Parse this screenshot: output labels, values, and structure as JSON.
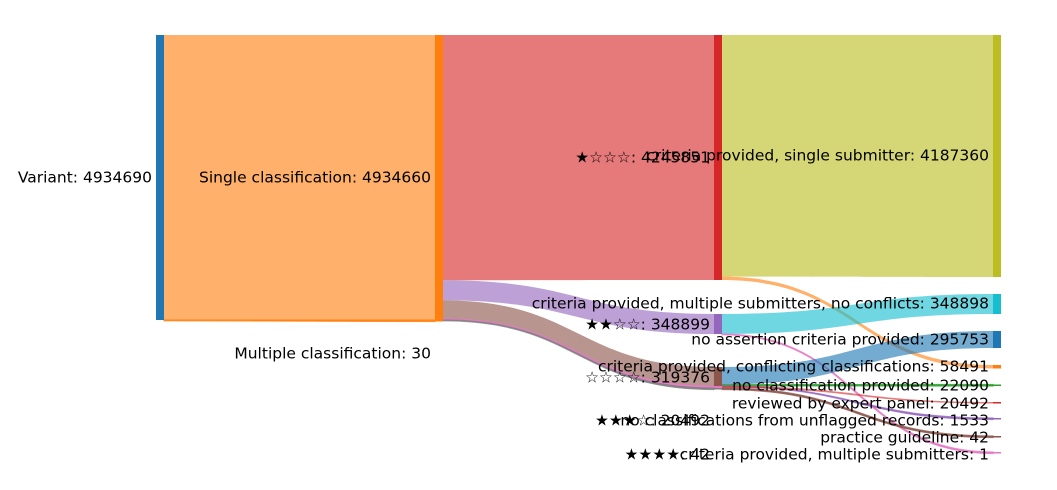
{
  "chart_data": {
    "type": "sankey",
    "title": "",
    "columns": [
      [
        {
          "id": "variant",
          "label": "Variant: 4934690",
          "value": 4934690,
          "color": "#1f77b4"
        }
      ],
      [
        {
          "id": "single",
          "label": "Single classification: 4934660",
          "value": 4934660,
          "color": "#ff7f0e"
        },
        {
          "id": "multiple",
          "label": "Multiple classification: 30",
          "value": 30,
          "color": "#ff7f0e"
        }
      ],
      [
        {
          "id": "star1",
          "label": "★☆☆☆: 4245851",
          "value": 4245851,
          "color": "#d62728"
        },
        {
          "id": "star2",
          "label": "★★☆☆: 348899",
          "value": 348899,
          "color": "#9467bd"
        },
        {
          "id": "star0",
          "label": "☆☆☆☆: 319376",
          "value": 319376,
          "color": "#8c564b"
        },
        {
          "id": "star3",
          "label": "★★★☆: 20492",
          "value": 20492,
          "color": "#e377c2"
        },
        {
          "id": "star4",
          "label": "★★★★: 42",
          "value": 42,
          "color": "#7f7f7f"
        }
      ],
      [
        {
          "id": "cp_single",
          "label": "criteria provided, single submitter: 4187360",
          "value": 4187360,
          "color": "#bcbd22"
        },
        {
          "id": "cp_multi_nc",
          "label": "criteria provided, multiple submitters, no conflicts: 348898",
          "value": 348898,
          "color": "#17becf"
        },
        {
          "id": "no_assert",
          "label": "no assertion criteria provided: 295753",
          "value": 295753,
          "color": "#1f77b4"
        },
        {
          "id": "cp_conflict",
          "label": "criteria provided, conflicting classifications: 58491",
          "value": 58491,
          "color": "#ff7f0e"
        },
        {
          "id": "no_class",
          "label": "no classification provided: 22090",
          "value": 22090,
          "color": "#2ca02c"
        },
        {
          "id": "expert",
          "label": "reviewed by expert panel: 20492",
          "value": 20492,
          "color": "#d62728"
        },
        {
          "id": "no_class_unflag",
          "label": "no classifications from unflagged records: 1533",
          "value": 1533,
          "color": "#9467bd"
        },
        {
          "id": "practice",
          "label": "practice guideline: 42",
          "value": 42,
          "color": "#8c564b"
        },
        {
          "id": "cp_multi",
          "label": "criteria provided, multiple submitters: 1",
          "value": 1,
          "color": "#e377c2"
        }
      ]
    ],
    "links": [
      {
        "source": "variant",
        "target": "single",
        "value": 4934660
      },
      {
        "source": "variant",
        "target": "multiple",
        "value": 30
      },
      {
        "source": "single",
        "target": "star1",
        "value": 4245851
      },
      {
        "source": "single",
        "target": "star2",
        "value": 348899
      },
      {
        "source": "single",
        "target": "star0",
        "value": 319376
      },
      {
        "source": "single",
        "target": "star3",
        "value": 20492
      },
      {
        "source": "single",
        "target": "star4",
        "value": 42
      },
      {
        "source": "star1",
        "target": "cp_single",
        "value": 4187360
      },
      {
        "source": "star1",
        "target": "cp_conflict",
        "value": 58491
      },
      {
        "source": "star2",
        "target": "cp_multi_nc",
        "value": 348898
      },
      {
        "source": "star2",
        "target": "cp_multi",
        "value": 1
      },
      {
        "source": "star0",
        "target": "no_assert",
        "value": 295753
      },
      {
        "source": "star0",
        "target": "no_class",
        "value": 22090
      },
      {
        "source": "star0",
        "target": "no_class_unflag",
        "value": 1533
      },
      {
        "source": "star3",
        "target": "expert",
        "value": 20492
      },
      {
        "source": "star4",
        "target": "practice",
        "value": 42
      }
    ]
  }
}
